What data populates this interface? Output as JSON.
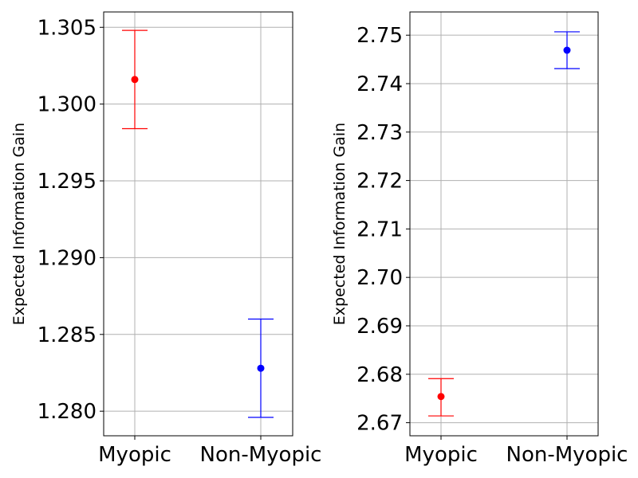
{
  "chart_data": [
    {
      "type": "errorbar",
      "title": "",
      "xlabel": "",
      "ylabel": "Expected Information Gain",
      "categories": [
        "Myopic",
        "Non-Myopic"
      ],
      "points": [
        {
          "category": "Myopic",
          "value": 1.3016,
          "err_low": 1.2984,
          "err_high": 1.3048,
          "color": "#ff0000"
        },
        {
          "category": "Non-Myopic",
          "value": 1.2828,
          "err_low": 1.2796,
          "err_high": 1.286,
          "color": "#0000ff"
        }
      ],
      "ylim": [
        1.2784,
        1.306
      ],
      "yticks": [
        1.28,
        1.285,
        1.29,
        1.295,
        1.3,
        1.305
      ],
      "ytick_labels": [
        "1.280",
        "1.285",
        "1.290",
        "1.295",
        "1.300",
        "1.305"
      ],
      "grid": true
    },
    {
      "type": "errorbar",
      "title": "",
      "xlabel": "",
      "ylabel": "Expected Information Gain",
      "categories": [
        "Myopic",
        "Non-Myopic"
      ],
      "points": [
        {
          "category": "Myopic",
          "value": 2.6754,
          "err_low": 2.6714,
          "err_high": 2.6791,
          "color": "#ff0000"
        },
        {
          "category": "Non-Myopic",
          "value": 2.7469,
          "err_low": 2.7431,
          "err_high": 2.7507,
          "color": "#0000ff"
        }
      ],
      "ylim": [
        2.6673,
        2.7548
      ],
      "yticks": [
        2.67,
        2.68,
        2.69,
        2.7,
        2.71,
        2.72,
        2.73,
        2.74,
        2.75
      ],
      "ytick_labels": [
        "2.67",
        "2.68",
        "2.69",
        "2.70",
        "2.71",
        "2.72",
        "2.73",
        "2.74",
        "2.75"
      ],
      "grid": true
    }
  ]
}
